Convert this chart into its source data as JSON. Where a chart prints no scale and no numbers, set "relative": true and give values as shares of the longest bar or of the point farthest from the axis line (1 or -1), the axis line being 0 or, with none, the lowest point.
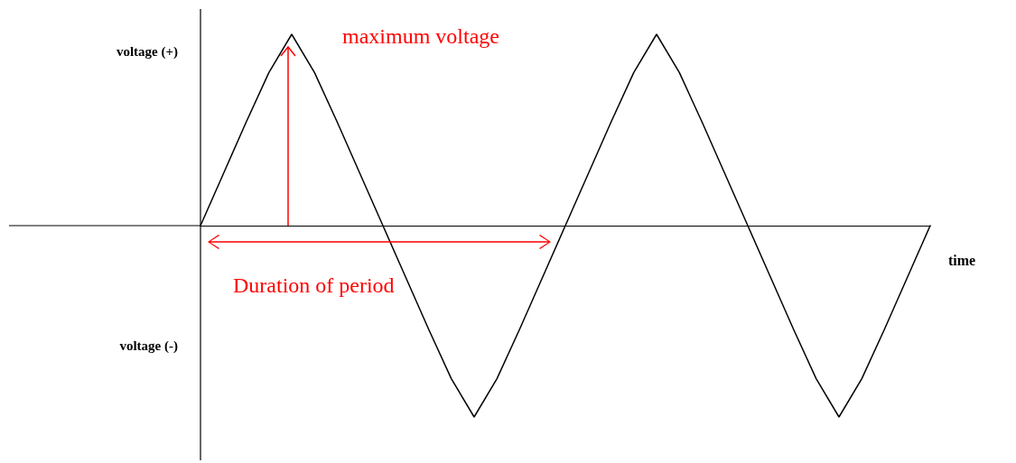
{
  "chart_data": {
    "type": "line",
    "relative": true,
    "xlabel": "time",
    "color": "#000000",
    "marker": "none",
    "line_style": "solid",
    "grid": false,
    "annotations": [
      "maximum voltage",
      "Duration of period",
      "voltage (+)",
      "voltage (-)"
    ],
    "categories": [
      null,
      null,
      null,
      null,
      null,
      null,
      null,
      null,
      null,
      null,
      null,
      null,
      null,
      null,
      null,
      null,
      null,
      null,
      null,
      null,
      null,
      null,
      null,
      null,
      null,
      null,
      null,
      null,
      null,
      null,
      null,
      null,
      null
    ],
    "values": [
      0,
      0.27,
      0.54,
      0.8,
      1,
      0.8,
      0.54,
      0.27,
      0,
      -0.27,
      -0.54,
      -0.8,
      -1,
      -0.8,
      -0.54,
      -0.27,
      0,
      0.27,
      0.54,
      0.8,
      1,
      0.8,
      0.54,
      0.27,
      0,
      -0.27,
      -0.54,
      -0.8,
      -1,
      -0.8,
      -0.54,
      -0.27,
      0
    ]
  }
}
